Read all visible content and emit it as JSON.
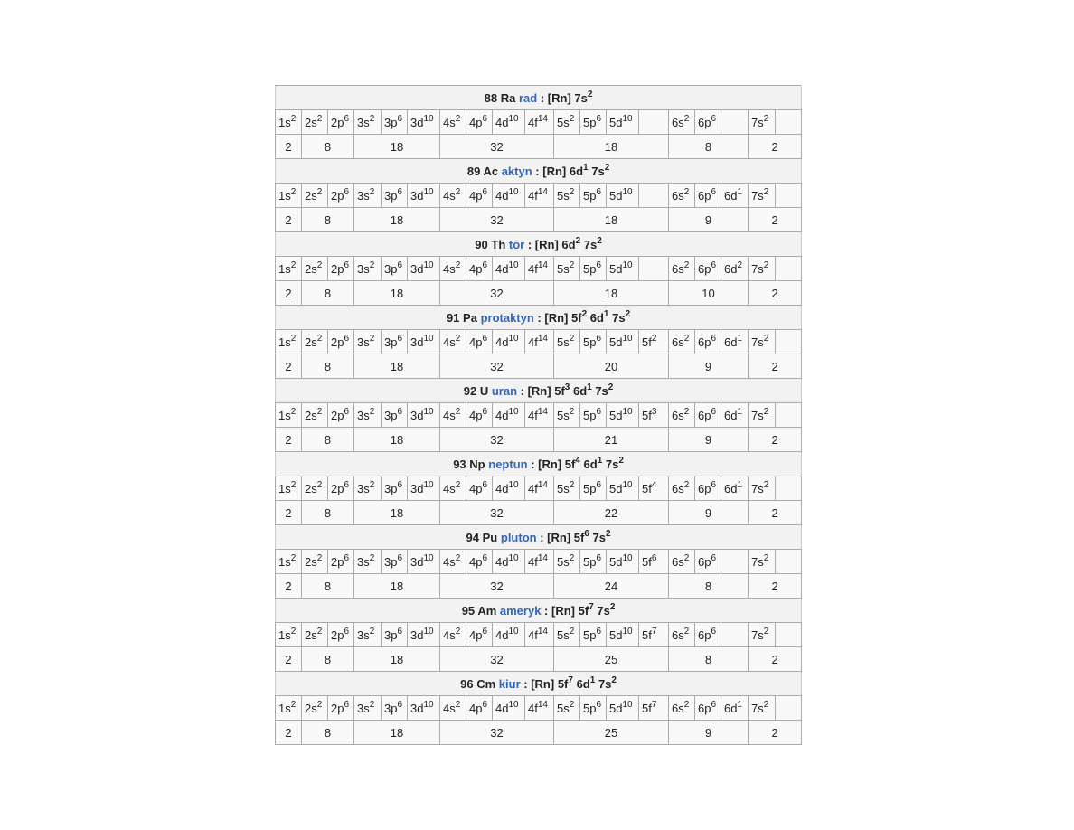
{
  "config_prefix": "[Rn]",
  "elements": [
    {
      "number": "88",
      "symbol": "Ra",
      "name": "rad",
      "config": [
        [
          "7s",
          "2"
        ]
      ],
      "orbitals": [
        [
          "1s",
          "2"
        ],
        [
          "2s",
          "2"
        ],
        [
          "2p",
          "6"
        ],
        [
          "3s",
          "2"
        ],
        [
          "3p",
          "6"
        ],
        [
          "3d",
          "10"
        ],
        [
          "4s",
          "2"
        ],
        [
          "4p",
          "6"
        ],
        [
          "4d",
          "10"
        ],
        [
          "4f",
          "14"
        ],
        [
          "5s",
          "2"
        ],
        [
          "5p",
          "6"
        ],
        [
          "5d",
          "10"
        ],
        [
          "",
          ""
        ],
        [
          "6s",
          "2"
        ],
        [
          "6p",
          "6"
        ],
        [
          "",
          ""
        ],
        [
          "7s",
          "2"
        ],
        [
          "",
          ""
        ]
      ],
      "shells": [
        "2",
        "8",
        "18",
        "32",
        "18",
        "8",
        "2"
      ]
    },
    {
      "number": "89",
      "symbol": "Ac",
      "name": "aktyn",
      "config": [
        [
          "6d",
          "1"
        ],
        [
          "7s",
          "2"
        ]
      ],
      "orbitals": [
        [
          "1s",
          "2"
        ],
        [
          "2s",
          "2"
        ],
        [
          "2p",
          "6"
        ],
        [
          "3s",
          "2"
        ],
        [
          "3p",
          "6"
        ],
        [
          "3d",
          "10"
        ],
        [
          "4s",
          "2"
        ],
        [
          "4p",
          "6"
        ],
        [
          "4d",
          "10"
        ],
        [
          "4f",
          "14"
        ],
        [
          "5s",
          "2"
        ],
        [
          "5p",
          "6"
        ],
        [
          "5d",
          "10"
        ],
        [
          "",
          ""
        ],
        [
          "6s",
          "2"
        ],
        [
          "6p",
          "6"
        ],
        [
          "6d",
          "1"
        ],
        [
          "7s",
          "2"
        ],
        [
          "",
          ""
        ]
      ],
      "shells": [
        "2",
        "8",
        "18",
        "32",
        "18",
        "9",
        "2"
      ]
    },
    {
      "number": "90",
      "symbol": "Th",
      "name": "tor",
      "config": [
        [
          "6d",
          "2"
        ],
        [
          "7s",
          "2"
        ]
      ],
      "orbitals": [
        [
          "1s",
          "2"
        ],
        [
          "2s",
          "2"
        ],
        [
          "2p",
          "6"
        ],
        [
          "3s",
          "2"
        ],
        [
          "3p",
          "6"
        ],
        [
          "3d",
          "10"
        ],
        [
          "4s",
          "2"
        ],
        [
          "4p",
          "6"
        ],
        [
          "4d",
          "10"
        ],
        [
          "4f",
          "14"
        ],
        [
          "5s",
          "2"
        ],
        [
          "5p",
          "6"
        ],
        [
          "5d",
          "10"
        ],
        [
          "",
          ""
        ],
        [
          "6s",
          "2"
        ],
        [
          "6p",
          "6"
        ],
        [
          "6d",
          "2"
        ],
        [
          "7s",
          "2"
        ],
        [
          "",
          ""
        ]
      ],
      "shells": [
        "2",
        "8",
        "18",
        "32",
        "18",
        "10",
        "2"
      ]
    },
    {
      "number": "91",
      "symbol": "Pa",
      "name": "protaktyn",
      "config": [
        [
          "5f",
          "2"
        ],
        [
          "6d",
          "1"
        ],
        [
          "7s",
          "2"
        ]
      ],
      "orbitals": [
        [
          "1s",
          "2"
        ],
        [
          "2s",
          "2"
        ],
        [
          "2p",
          "6"
        ],
        [
          "3s",
          "2"
        ],
        [
          "3p",
          "6"
        ],
        [
          "3d",
          "10"
        ],
        [
          "4s",
          "2"
        ],
        [
          "4p",
          "6"
        ],
        [
          "4d",
          "10"
        ],
        [
          "4f",
          "14"
        ],
        [
          "5s",
          "2"
        ],
        [
          "5p",
          "6"
        ],
        [
          "5d",
          "10"
        ],
        [
          "5f",
          "2"
        ],
        [
          "6s",
          "2"
        ],
        [
          "6p",
          "6"
        ],
        [
          "6d",
          "1"
        ],
        [
          "7s",
          "2"
        ],
        [
          "",
          ""
        ]
      ],
      "shells": [
        "2",
        "8",
        "18",
        "32",
        "20",
        "9",
        "2"
      ]
    },
    {
      "number": "92",
      "symbol": "U",
      "name": "uran",
      "config": [
        [
          "5f",
          "3"
        ],
        [
          "6d",
          "1"
        ],
        [
          "7s",
          "2"
        ]
      ],
      "orbitals": [
        [
          "1s",
          "2"
        ],
        [
          "2s",
          "2"
        ],
        [
          "2p",
          "6"
        ],
        [
          "3s",
          "2"
        ],
        [
          "3p",
          "6"
        ],
        [
          "3d",
          "10"
        ],
        [
          "4s",
          "2"
        ],
        [
          "4p",
          "6"
        ],
        [
          "4d",
          "10"
        ],
        [
          "4f",
          "14"
        ],
        [
          "5s",
          "2"
        ],
        [
          "5p",
          "6"
        ],
        [
          "5d",
          "10"
        ],
        [
          "5f",
          "3"
        ],
        [
          "6s",
          "2"
        ],
        [
          "6p",
          "6"
        ],
        [
          "6d",
          "1"
        ],
        [
          "7s",
          "2"
        ],
        [
          "",
          ""
        ]
      ],
      "shells": [
        "2",
        "8",
        "18",
        "32",
        "21",
        "9",
        "2"
      ]
    },
    {
      "number": "93",
      "symbol": "Np",
      "name": "neptun",
      "config": [
        [
          "5f",
          "4"
        ],
        [
          "6d",
          "1"
        ],
        [
          "7s",
          "2"
        ]
      ],
      "orbitals": [
        [
          "1s",
          "2"
        ],
        [
          "2s",
          "2"
        ],
        [
          "2p",
          "6"
        ],
        [
          "3s",
          "2"
        ],
        [
          "3p",
          "6"
        ],
        [
          "3d",
          "10"
        ],
        [
          "4s",
          "2"
        ],
        [
          "4p",
          "6"
        ],
        [
          "4d",
          "10"
        ],
        [
          "4f",
          "14"
        ],
        [
          "5s",
          "2"
        ],
        [
          "5p",
          "6"
        ],
        [
          "5d",
          "10"
        ],
        [
          "5f",
          "4"
        ],
        [
          "6s",
          "2"
        ],
        [
          "6p",
          "6"
        ],
        [
          "6d",
          "1"
        ],
        [
          "7s",
          "2"
        ],
        [
          "",
          ""
        ]
      ],
      "shells": [
        "2",
        "8",
        "18",
        "32",
        "22",
        "9",
        "2"
      ]
    },
    {
      "number": "94",
      "symbol": "Pu",
      "name": "pluton",
      "config": [
        [
          "5f",
          "6"
        ],
        [
          "7s",
          "2"
        ]
      ],
      "orbitals": [
        [
          "1s",
          "2"
        ],
        [
          "2s",
          "2"
        ],
        [
          "2p",
          "6"
        ],
        [
          "3s",
          "2"
        ],
        [
          "3p",
          "6"
        ],
        [
          "3d",
          "10"
        ],
        [
          "4s",
          "2"
        ],
        [
          "4p",
          "6"
        ],
        [
          "4d",
          "10"
        ],
        [
          "4f",
          "14"
        ],
        [
          "5s",
          "2"
        ],
        [
          "5p",
          "6"
        ],
        [
          "5d",
          "10"
        ],
        [
          "5f",
          "6"
        ],
        [
          "6s",
          "2"
        ],
        [
          "6p",
          "6"
        ],
        [
          "",
          ""
        ],
        [
          "7s",
          "2"
        ],
        [
          "",
          ""
        ]
      ],
      "shells": [
        "2",
        "8",
        "18",
        "32",
        "24",
        "8",
        "2"
      ]
    },
    {
      "number": "95",
      "symbol": "Am",
      "name": "ameryk",
      "config": [
        [
          "5f",
          "7"
        ],
        [
          "7s",
          "2"
        ]
      ],
      "orbitals": [
        [
          "1s",
          "2"
        ],
        [
          "2s",
          "2"
        ],
        [
          "2p",
          "6"
        ],
        [
          "3s",
          "2"
        ],
        [
          "3p",
          "6"
        ],
        [
          "3d",
          "10"
        ],
        [
          "4s",
          "2"
        ],
        [
          "4p",
          "6"
        ],
        [
          "4d",
          "10"
        ],
        [
          "4f",
          "14"
        ],
        [
          "5s",
          "2"
        ],
        [
          "5p",
          "6"
        ],
        [
          "5d",
          "10"
        ],
        [
          "5f",
          "7"
        ],
        [
          "6s",
          "2"
        ],
        [
          "6p",
          "6"
        ],
        [
          "",
          ""
        ],
        [
          "7s",
          "2"
        ],
        [
          "",
          ""
        ]
      ],
      "shells": [
        "2",
        "8",
        "18",
        "32",
        "25",
        "8",
        "2"
      ]
    },
    {
      "number": "96",
      "symbol": "Cm",
      "name": "kiur",
      "config": [
        [
          "5f",
          "7"
        ],
        [
          "6d",
          "1"
        ],
        [
          "7s",
          "2"
        ]
      ],
      "orbitals": [
        [
          "1s",
          "2"
        ],
        [
          "2s",
          "2"
        ],
        [
          "2p",
          "6"
        ],
        [
          "3s",
          "2"
        ],
        [
          "3p",
          "6"
        ],
        [
          "3d",
          "10"
        ],
        [
          "4s",
          "2"
        ],
        [
          "4p",
          "6"
        ],
        [
          "4d",
          "10"
        ],
        [
          "4f",
          "14"
        ],
        [
          "5s",
          "2"
        ],
        [
          "5p",
          "6"
        ],
        [
          "5d",
          "10"
        ],
        [
          "5f",
          "7"
        ],
        [
          "6s",
          "2"
        ],
        [
          "6p",
          "6"
        ],
        [
          "6d",
          "1"
        ],
        [
          "7s",
          "2"
        ],
        [
          "",
          ""
        ]
      ],
      "shells": [
        "2",
        "8",
        "18",
        "32",
        "25",
        "9",
        "2"
      ]
    }
  ],
  "colors": {
    "link": "#3366bb",
    "header_bg": "#f2f2f2",
    "cell_bg": "#f9f9f9",
    "border": "#aaaaaa"
  }
}
